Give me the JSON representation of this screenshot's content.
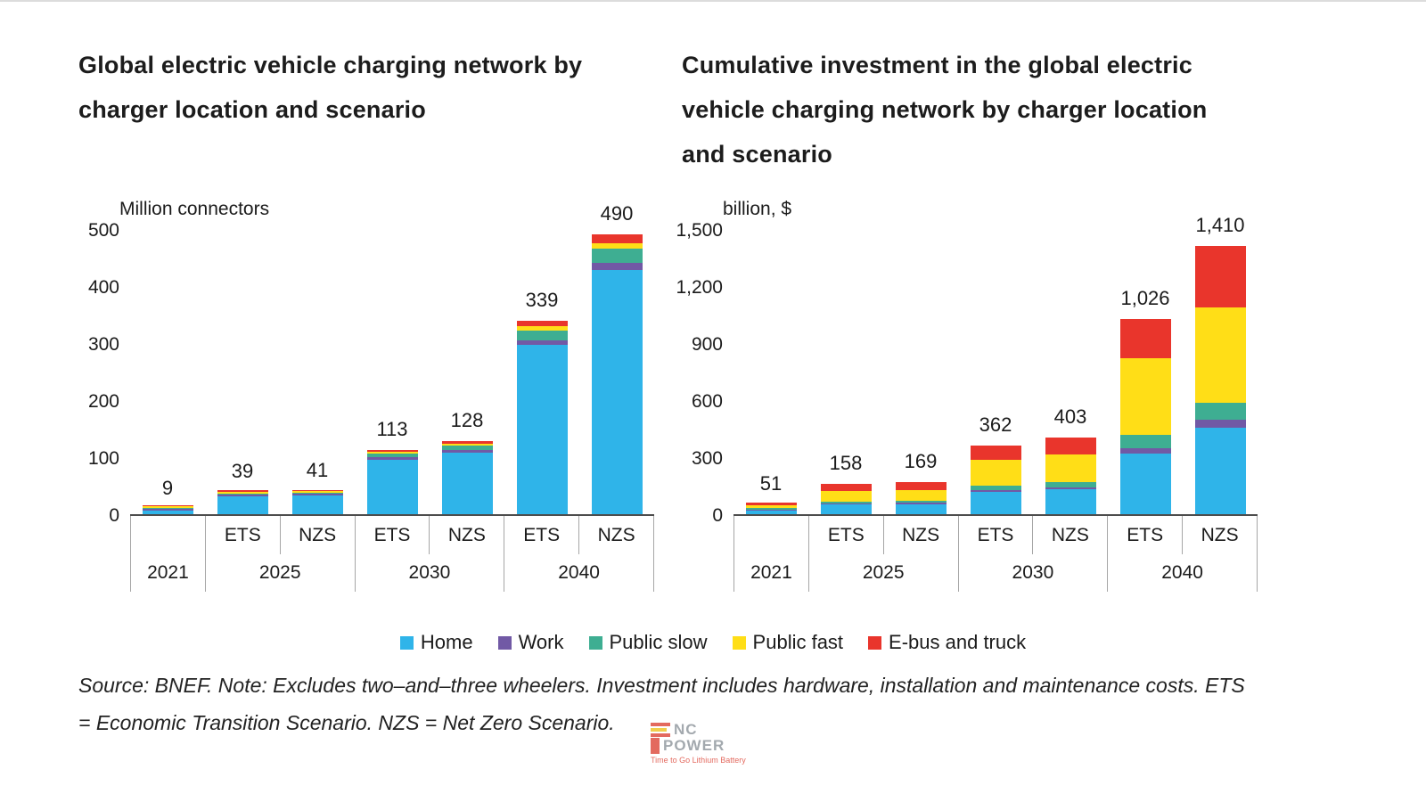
{
  "chart_data": [
    {
      "type": "bar",
      "stacked": true,
      "title_lines": [
        "Global electric vehicle charging network by",
        "charger location and scenario"
      ],
      "unit_label": "Million connectors",
      "categories": [
        "2021",
        "2025 ETS",
        "2025 NZS",
        "2030 ETS",
        "2030 NZS",
        "2040 ETS",
        "2040 NZS"
      ],
      "series": [
        {
          "name": "Home",
          "values": [
            7,
            32,
            33,
            96,
            108,
            297,
            428
          ]
        },
        {
          "name": "Work",
          "values": [
            0.4,
            1.5,
            1.5,
            4,
            5,
            7,
            12
          ]
        },
        {
          "name": "Public slow",
          "values": [
            0.6,
            2,
            2.5,
            6,
            7,
            18,
            25
          ]
        },
        {
          "name": "Public fast",
          "values": [
            0.3,
            1,
            1.5,
            3,
            3,
            7,
            10
          ]
        },
        {
          "name": "E-bus and truck",
          "values": [
            0.7,
            2.5,
            2.5,
            4,
            5,
            10,
            15
          ]
        }
      ],
      "totals": [
        "9",
        "39",
        "41",
        "113",
        "128",
        "339",
        "490"
      ],
      "y_axis": {
        "max": 500,
        "ticks": [
          {
            "label": "500",
            "value": 500
          },
          {
            "label": "400",
            "value": 400
          },
          {
            "label": "300",
            "value": 300
          },
          {
            "label": "200",
            "value": 200
          },
          {
            "label": "100",
            "value": 100
          },
          {
            "label": "0",
            "value": 0
          }
        ]
      },
      "axis": {
        "scenario_row": [
          "",
          "ETS",
          "NZS",
          "ETS",
          "NZS",
          "ETS",
          "NZS"
        ],
        "year_row": [
          {
            "label": "2021",
            "span": 1
          },
          {
            "label": "2025",
            "span": 2
          },
          {
            "label": "2030",
            "span": 2
          },
          {
            "label": "2040",
            "span": 2
          }
        ]
      }
    },
    {
      "type": "bar",
      "stacked": true,
      "title_lines": [
        "Cumulative investment in the global electric",
        "vehicle charging network by charger location",
        "and scenario"
      ],
      "unit_label": "billion, $",
      "categories": [
        "2021",
        "2025 ETS",
        "2025 NZS",
        "2030 ETS",
        "2030 NZS",
        "2040 ETS",
        "2040 NZS"
      ],
      "series": [
        {
          "name": "Home",
          "values": [
            17,
            50,
            53,
            115,
            130,
            320,
            455
          ]
        },
        {
          "name": "Work",
          "values": [
            2,
            5,
            6,
            10,
            12,
            25,
            40
          ]
        },
        {
          "name": "Public slow",
          "values": [
            4,
            10,
            11,
            25,
            28,
            70,
            90
          ]
        },
        {
          "name": "Public fast",
          "values": [
            18,
            55,
            58,
            135,
            145,
            405,
            505
          ]
        },
        {
          "name": "E-bus and truck",
          "values": [
            10,
            38,
            41,
            77,
            88,
            206,
            320
          ]
        }
      ],
      "totals": [
        "51",
        "158",
        "169",
        "362",
        "403",
        "1,026",
        "1,410"
      ],
      "y_axis": {
        "max": 1500,
        "ticks": [
          {
            "label": "1,500",
            "value": 1500
          },
          {
            "label": "1,200",
            "value": 1200
          },
          {
            "label": "900",
            "value": 900
          },
          {
            "label": "600",
            "value": 600
          },
          {
            "label": "300",
            "value": 300
          },
          {
            "label": "0",
            "value": 0
          }
        ]
      },
      "axis": {
        "scenario_row": [
          "",
          "ETS",
          "NZS",
          "ETS",
          "NZS",
          "ETS",
          "NZS"
        ],
        "year_row": [
          {
            "label": "2021",
            "span": 1
          },
          {
            "label": "2025",
            "span": 2
          },
          {
            "label": "2030",
            "span": 2
          },
          {
            "label": "2040",
            "span": 2
          }
        ]
      }
    }
  ],
  "legend": {
    "items": [
      {
        "label": "Home",
        "color": "#2fb4e9"
      },
      {
        "label": "Work",
        "color": "#7159a5"
      },
      {
        "label": "Public slow",
        "color": "#3eae92"
      },
      {
        "label": "Public fast",
        "color": "#ffde17"
      },
      {
        "label": "E-bus and truck",
        "color": "#e9352c"
      }
    ]
  },
  "footer": {
    "lines": [
      "Source: BNEF. Note: Excludes two–and–three wheelers. Investment includes hardware, installation and maintenance costs. ETS",
      "= Economic Transition Scenario. NZS = Net Zero Scenario."
    ]
  },
  "logo": {
    "name_top": "NC",
    "name_bottom": "POWER",
    "tagline": "Time to Go Lithium Battery"
  }
}
